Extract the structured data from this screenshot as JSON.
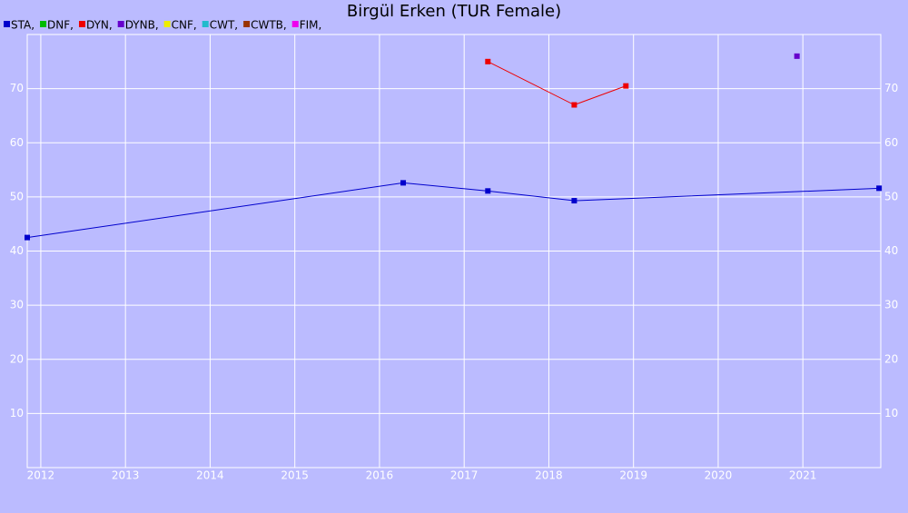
{
  "chart_data": {
    "type": "line",
    "title": "Birgül Erken (TUR Female)",
    "series": [
      {
        "name": "STA,",
        "color": "#0000cc",
        "x": [
          2011.84,
          2016.28,
          2017.28,
          2018.3,
          2021.9
        ],
        "values": [
          42.5,
          52.6,
          51.1,
          49.3,
          51.6
        ]
      },
      {
        "name": "DNF,",
        "color": "#00bb00",
        "x": [],
        "values": []
      },
      {
        "name": "DYN,",
        "color": "#ee0000",
        "x": [
          2017.28,
          2018.3,
          2018.91
        ],
        "values": [
          75,
          67,
          70.5
        ]
      },
      {
        "name": "DYNB,",
        "color": "#6600cc",
        "x": [
          2020.93
        ],
        "values": [
          76
        ]
      },
      {
        "name": "CNF,",
        "color": "#eeee00",
        "x": [],
        "values": []
      },
      {
        "name": "CWT,",
        "color": "#22bbcc",
        "x": [],
        "values": []
      },
      {
        "name": "CWTB,",
        "color": "#993300",
        "x": [],
        "values": []
      },
      {
        "name": "FIM,",
        "color": "#ee00ee",
        "x": [],
        "values": []
      }
    ],
    "xlim": [
      2011.84,
      2021.92
    ],
    "xticks": [
      2012,
      2013,
      2014,
      2015,
      2016,
      2017,
      2018,
      2019,
      2020,
      2021
    ],
    "ylim": [
      0,
      80
    ],
    "yticks": [
      10,
      20,
      30,
      40,
      50,
      60,
      70
    ],
    "grid": true
  }
}
